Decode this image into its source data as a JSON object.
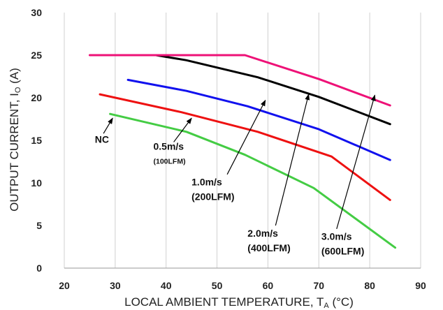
{
  "chart_data": {
    "type": "line",
    "xlabel": {
      "text": "LOCAL AMBIENT TEMPERATURE, T",
      "sub": "A",
      "unit": " (°C)"
    },
    "ylabel": {
      "text": "OUTPUT CURRENT, I",
      "sub": "O",
      "unit": " (A)"
    },
    "xlim": [
      20,
      90
    ],
    "ylim": [
      0,
      30
    ],
    "xticks": [
      20,
      30,
      40,
      50,
      60,
      70,
      80,
      90
    ],
    "yticks": [
      0,
      5,
      10,
      15,
      20,
      25,
      30
    ],
    "grid": "vertical",
    "series": [
      {
        "name": "NC",
        "color": "#44cc44",
        "x": [
          29,
          44,
          55.5,
          69,
          85
        ],
        "y": [
          18.1,
          16.0,
          13.3,
          9.4,
          2.4
        ]
      },
      {
        "name": "0.5m/s (100LFM)",
        "color": "#ee1111",
        "x": [
          27,
          43,
          58,
          72.5,
          84
        ],
        "y": [
          20.4,
          18.3,
          16.0,
          13.1,
          8.0
        ]
      },
      {
        "name": "1.0m/s (200LFM)",
        "color": "#1111ee",
        "x": [
          32.5,
          44,
          56,
          70,
          84
        ],
        "y": [
          22.1,
          20.8,
          19.0,
          16.3,
          12.7
        ]
      },
      {
        "name": "2.0m/s (400LFM)",
        "color": "#000000",
        "x": [
          38,
          44,
          58,
          70,
          84
        ],
        "y": [
          25.0,
          24.4,
          22.4,
          20.1,
          16.9
        ]
      },
      {
        "name": "3.0m/s (600LFM)",
        "color": "#ee1177",
        "x": [
          25,
          55.5,
          70,
          84
        ],
        "y": [
          25.0,
          25.0,
          22.2,
          19.1
        ]
      }
    ],
    "annotations": [
      {
        "lines": [
          "NC"
        ],
        "size": "large",
        "label_at": [
          26,
          14.7
        ],
        "arrow_from": [
          27.7,
          15.8
        ],
        "arrow_to": [
          29.5,
          17.6
        ]
      },
      {
        "lines": [
          "0.5m/s",
          "(100LFM)"
        ],
        "size": "mixed",
        "label_at": [
          37.5,
          13.9
        ],
        "arrow_from": [
          41.5,
          14.8
        ],
        "arrow_to": [
          45,
          17.6
        ]
      },
      {
        "lines": [
          "1.0m/s",
          "(200LFM)"
        ],
        "size": "large",
        "label_at": [
          45,
          9.7
        ],
        "arrow_from": [
          52,
          11.0
        ],
        "arrow_to": [
          59.5,
          19.7
        ]
      },
      {
        "lines": [
          "2.0m/s",
          "(400LFM)"
        ],
        "size": "large",
        "label_at": [
          56,
          3.7
        ],
        "arrow_from": [
          61.5,
          5.0
        ],
        "arrow_to": [
          68,
          20.4
        ]
      },
      {
        "lines": [
          "3.0m/s",
          "(600LFM)"
        ],
        "size": "large",
        "label_at": [
          70.5,
          3.3
        ],
        "arrow_from": [
          73.5,
          4.6
        ],
        "arrow_to": [
          81,
          20.3
        ]
      }
    ]
  }
}
